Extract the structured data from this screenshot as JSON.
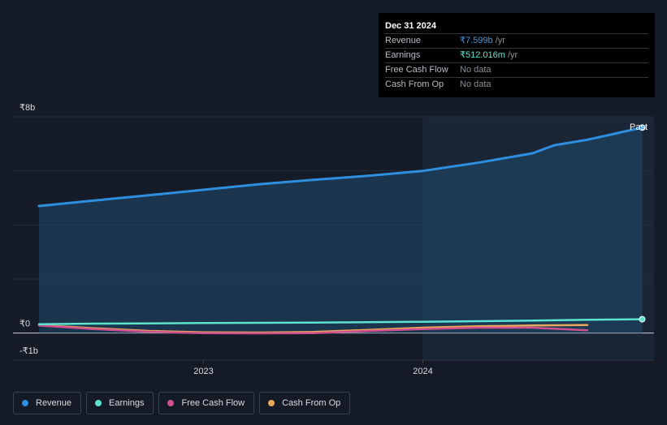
{
  "tooltip": {
    "date": "Dec 31 2024",
    "rows": [
      {
        "label": "Revenue",
        "value": "₹7.599b",
        "unit": "/yr",
        "color": "#3a9be8"
      },
      {
        "label": "Earnings",
        "value": "₹512.016m",
        "unit": "/yr",
        "color": "#5de3cf"
      },
      {
        "label": "Free Cash Flow",
        "value": "No data",
        "unit": "",
        "color": "#8a8f97"
      },
      {
        "label": "Cash From Op",
        "value": "No data",
        "unit": "",
        "color": "#8a8f97"
      }
    ]
  },
  "legend": [
    {
      "label": "Revenue",
      "color": "#2e8fe0"
    },
    {
      "label": "Earnings",
      "color": "#5de3cf"
    },
    {
      "label": "Free Cash Flow",
      "color": "#d0508f"
    },
    {
      "label": "Cash From Op",
      "color": "#e8a75a"
    }
  ],
  "chart_data": {
    "type": "line",
    "y_tick_labels": [
      "₹8b",
      "₹0",
      "-₹1b"
    ],
    "x_tick_labels": [
      "2023",
      "2024"
    ],
    "past_label": "Past",
    "ylim": [
      -1,
      8
    ],
    "xlim": [
      2022.2,
      2025.0
    ],
    "past_start": 2024.0,
    "series": [
      {
        "name": "Revenue",
        "color": "#2e8fe0",
        "x": [
          2022.25,
          2022.5,
          2022.75,
          2023.0,
          2023.25,
          2023.5,
          2023.75,
          2024.0,
          2024.25,
          2024.5,
          2024.6,
          2024.75,
          2025.0
        ],
        "y": [
          4.7,
          4.9,
          5.1,
          5.3,
          5.5,
          5.67,
          5.82,
          6.0,
          6.3,
          6.65,
          6.95,
          7.15,
          7.6
        ]
      },
      {
        "name": "Earnings",
        "color": "#5de3cf",
        "x": [
          2022.25,
          2022.5,
          2022.75,
          2023.0,
          2023.25,
          2023.5,
          2023.75,
          2024.0,
          2024.25,
          2024.5,
          2024.75,
          2025.0
        ],
        "y": [
          0.33,
          0.35,
          0.36,
          0.37,
          0.38,
          0.39,
          0.4,
          0.42,
          0.44,
          0.46,
          0.49,
          0.512
        ]
      },
      {
        "name": "Free Cash Flow",
        "color": "#d0508f",
        "x": [
          2022.25,
          2022.5,
          2022.75,
          2023.0,
          2023.25,
          2023.5,
          2023.75,
          2024.0,
          2024.25,
          2024.5,
          2024.75
        ],
        "y": [
          0.28,
          0.15,
          0.05,
          0.0,
          -0.01,
          0.0,
          0.08,
          0.15,
          0.2,
          0.2,
          0.1
        ]
      },
      {
        "name": "Cash From Op",
        "color": "#e8a75a",
        "x": [
          2022.25,
          2022.5,
          2022.75,
          2023.0,
          2023.25,
          2023.5,
          2023.75,
          2024.0,
          2024.25,
          2024.5,
          2024.75
        ],
        "y": [
          0.3,
          0.18,
          0.08,
          0.03,
          0.02,
          0.04,
          0.12,
          0.2,
          0.25,
          0.28,
          0.3
        ]
      }
    ]
  }
}
